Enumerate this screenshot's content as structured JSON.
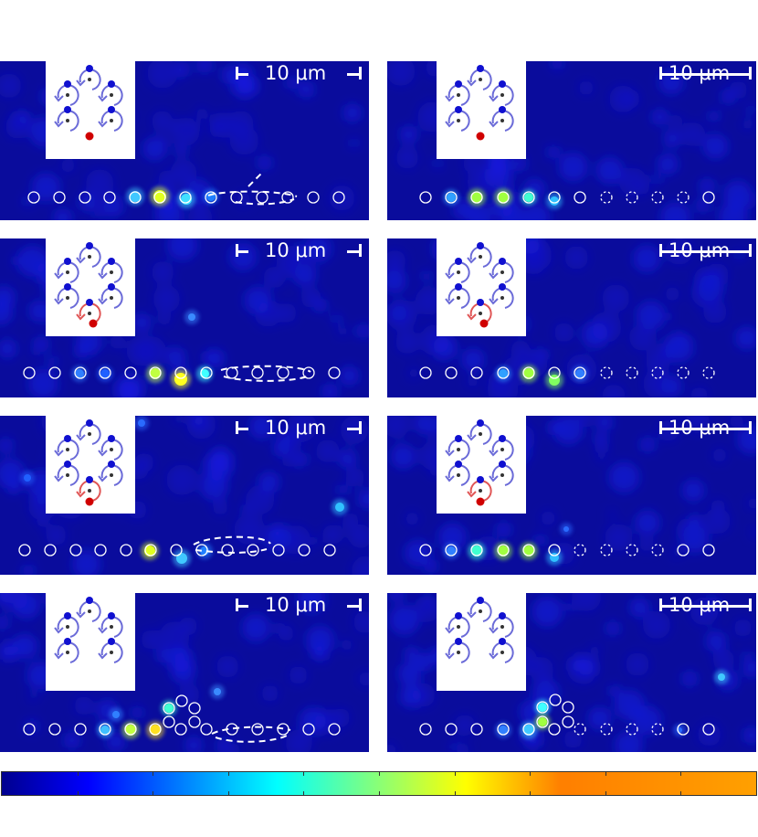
{
  "figure": {
    "scale_label": "10 μm"
  },
  "panels": [
    {
      "id": "r1c1",
      "col": 0,
      "row": 0,
      "variant": "a"
    },
    {
      "id": "r1c2",
      "col": 1,
      "row": 0,
      "variant": "a"
    },
    {
      "id": "r2c1",
      "col": 0,
      "row": 1,
      "variant": "b"
    },
    {
      "id": "r2c2",
      "col": 1,
      "row": 1,
      "variant": "b"
    },
    {
      "id": "r3c1",
      "col": 0,
      "row": 2,
      "variant": "c"
    },
    {
      "id": "r3c2",
      "col": 1,
      "row": 2,
      "variant": "c"
    },
    {
      "id": "r4c1",
      "col": 0,
      "row": 3,
      "variant": "d"
    },
    {
      "id": "r4c2",
      "col": 1,
      "row": 3,
      "variant": "d"
    }
  ],
  "colors": {
    "background_field": "#0a0c9c",
    "ring_outline": "#ffffff",
    "inset_blue_arrow": "#6b6bd8",
    "inset_red_arrow": "#e05656",
    "inset_red_dot": "#d00000",
    "inset_blue_dot": "#1010d0"
  },
  "colorbar": {
    "colormap": "jet",
    "tick_count": 10
  }
}
